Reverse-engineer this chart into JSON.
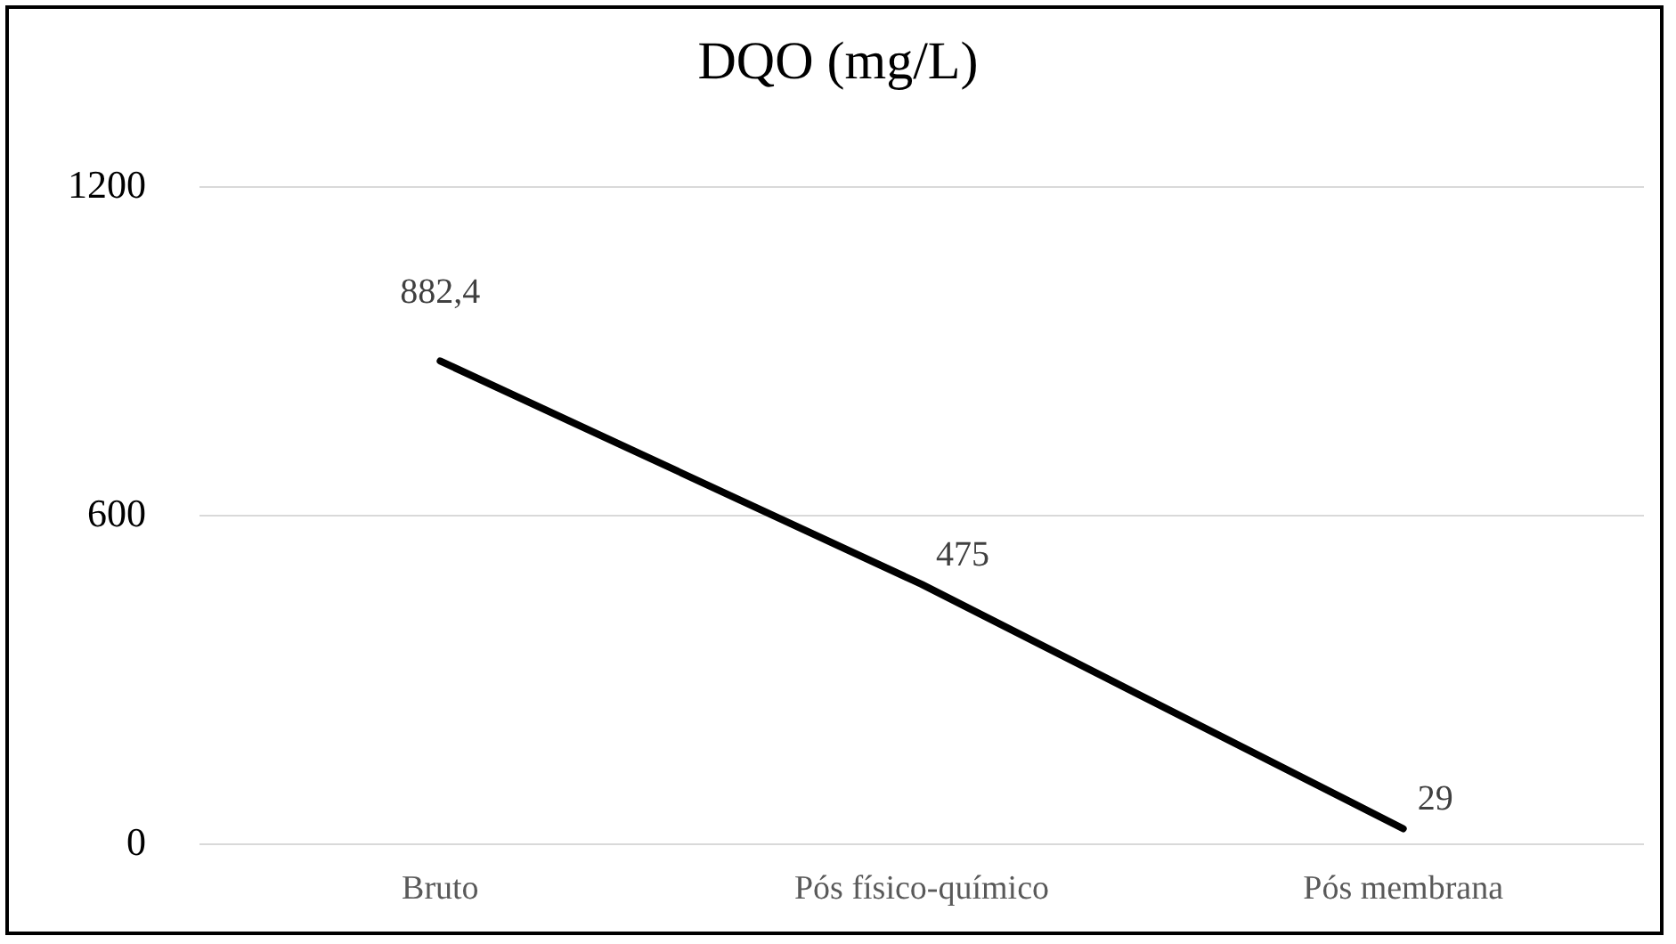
{
  "chart_data": {
    "type": "line",
    "title": "DQO (mg/L)",
    "categories": [
      "Bruto",
      "Pós físico-químico",
      "Pós membrana"
    ],
    "values": [
      882.4,
      475,
      29
    ],
    "value_labels": [
      "882,4",
      "475",
      "29"
    ],
    "color": "#000000",
    "ylim": [
      0,
      1200
    ],
    "yticks": [
      0,
      600,
      1200
    ],
    "grid": "y",
    "marker": "none",
    "line_style": "solid"
  }
}
